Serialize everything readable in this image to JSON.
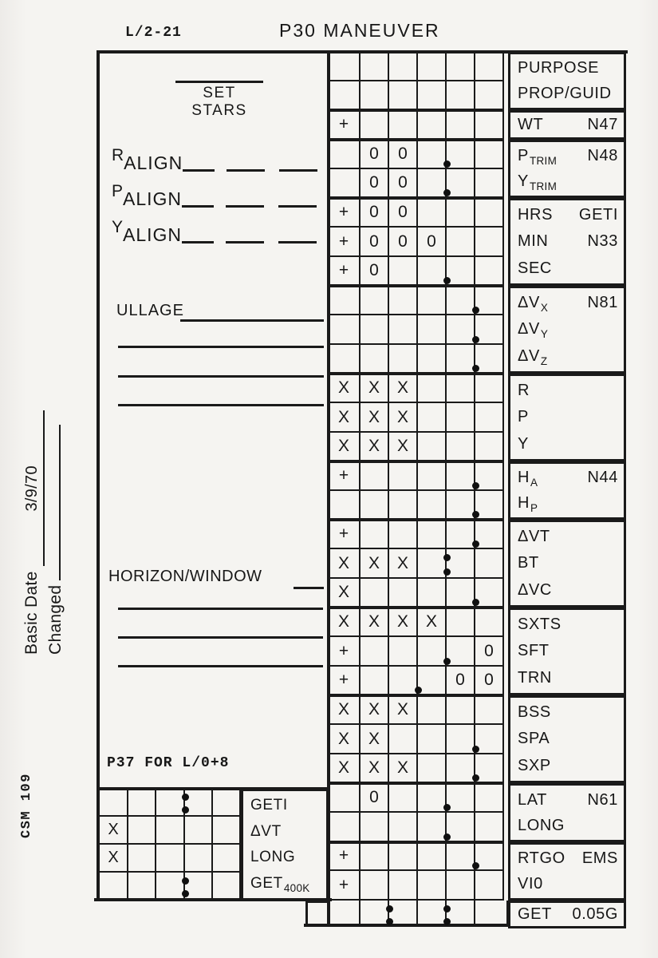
{
  "header": {
    "card_code": "L/2-21",
    "title": "P30 MANEUVER"
  },
  "margin": {
    "basic_date_label": "Basic Date",
    "basic_date_value": "3/9/70",
    "changed_label": "Changed",
    "csm": "CSM 109"
  },
  "left_annotations": {
    "set_stars": "SET STARS",
    "aligns": [
      {
        "main": "R",
        "sub": "ALIGN",
        "blanks": 3
      },
      {
        "main": "P",
        "sub": "ALIGN",
        "blanks": 3
      },
      {
        "main": "Y",
        "sub": "ALIGN",
        "blanks": 3
      }
    ],
    "ullage": "ULLAGE",
    "ullage_blank_lines": 3,
    "horizon": "HORIZON/WINDOW",
    "horizon_blank_lines": 3,
    "p37_note": "P37 FOR L/0+8"
  },
  "main_table": {
    "columns": 6,
    "sections": [
      {
        "label_lines": [
          [
            {
              "t": "PURPOSE"
            }
          ],
          [
            {
              "t": "PROP/GUID"
            }
          ]
        ],
        "rows": [
          {
            "cells": [
              "",
              "",
              "",
              "",
              "",
              ""
            ]
          },
          {
            "cells": [
              "",
              "",
              "",
              "",
              "",
              ""
            ]
          }
        ]
      },
      {
        "label_lines": [
          [
            {
              "t": "WT"
            },
            {
              "t": "N47",
              "style": "right"
            }
          ]
        ],
        "rows": [
          {
            "cells": [
              "+",
              "",
              "",
              "",
              "",
              ""
            ]
          }
        ]
      },
      {
        "label_lines": [
          [
            {
              "t": "P"
            },
            {
              "t": "TRIM",
              "style": "sub"
            },
            {
              "t": "N48",
              "style": "right"
            }
          ],
          [
            {
              "t": "Y"
            },
            {
              "t": "TRIM",
              "style": "sub"
            }
          ]
        ],
        "rows": [
          {
            "cells": [
              "",
              "0",
              "0",
              "",
              "",
              ""
            ],
            "dot": 4
          },
          {
            "cells": [
              "",
              "0",
              "0",
              "",
              "",
              ""
            ],
            "dot": 4
          }
        ]
      },
      {
        "label_lines": [
          [
            {
              "t": "HRS"
            },
            {
              "t": "GETI",
              "style": "right"
            }
          ],
          [
            {
              "t": "MIN"
            },
            {
              "t": "N33",
              "style": "right"
            }
          ],
          [
            {
              "t": "SEC"
            }
          ]
        ],
        "rows": [
          {
            "cells": [
              "+",
              "0",
              "0",
              "",
              "",
              ""
            ]
          },
          {
            "cells": [
              "+",
              "0",
              "0",
              "0",
              "",
              ""
            ]
          },
          {
            "cells": [
              "+",
              "0",
              "",
              "",
              "",
              ""
            ],
            "dot": 4
          }
        ]
      },
      {
        "label_lines": [
          [
            {
              "t": "ΔV"
            },
            {
              "t": "X",
              "style": "sub"
            },
            {
              "t": "N81",
              "style": "right"
            }
          ],
          [
            {
              "t": "ΔV"
            },
            {
              "t": "Y",
              "style": "sub"
            }
          ],
          [
            {
              "t": "ΔV"
            },
            {
              "t": "Z",
              "style": "sub"
            }
          ]
        ],
        "rows": [
          {
            "cells": [
              "",
              "",
              "",
              "",
              "",
              ""
            ],
            "dot": 5
          },
          {
            "cells": [
              "",
              "",
              "",
              "",
              "",
              ""
            ],
            "dot": 5
          },
          {
            "cells": [
              "",
              "",
              "",
              "",
              "",
              ""
            ],
            "dot": 5
          }
        ]
      },
      {
        "label_lines": [
          [
            {
              "t": "R"
            }
          ],
          [
            {
              "t": "P"
            }
          ],
          [
            {
              "t": "Y"
            }
          ]
        ],
        "rows": [
          {
            "cells": [
              "X",
              "X",
              "X",
              "",
              "",
              ""
            ]
          },
          {
            "cells": [
              "X",
              "X",
              "X",
              "",
              "",
              ""
            ]
          },
          {
            "cells": [
              "X",
              "X",
              "X",
              "",
              "",
              ""
            ]
          }
        ]
      },
      {
        "label_lines": [
          [
            {
              "t": "H"
            },
            {
              "t": "A",
              "style": "sub"
            },
            {
              "t": "N44",
              "style": "right"
            }
          ],
          [
            {
              "t": "H"
            },
            {
              "t": "P",
              "style": "sub"
            }
          ]
        ],
        "rows": [
          {
            "cells": [
              "+",
              "",
              "",
              "",
              "",
              ""
            ],
            "dot": 5
          },
          {
            "cells": [
              "",
              "",
              "",
              "",
              "",
              ""
            ],
            "dot": 5
          }
        ]
      },
      {
        "label_lines": [
          [
            {
              "t": "ΔVT"
            }
          ],
          [
            {
              "t": "BT"
            }
          ],
          [
            {
              "t": "ΔVC"
            }
          ]
        ],
        "rows": [
          {
            "cells": [
              "+",
              "",
              "",
              "",
              "",
              ""
            ],
            "dot": 5
          },
          {
            "cells": [
              "X",
              "X",
              "X",
              "",
              "",
              ""
            ],
            "colon": 4
          },
          {
            "cells": [
              "X",
              "",
              "",
              "",
              "",
              ""
            ],
            "dot": 5
          }
        ]
      },
      {
        "label_lines": [
          [
            {
              "t": "SXTS"
            }
          ],
          [
            {
              "t": "SFT"
            }
          ],
          [
            {
              "t": "TRN"
            }
          ]
        ],
        "rows": [
          {
            "cells": [
              "X",
              "X",
              "X",
              "X",
              "",
              ""
            ]
          },
          {
            "cells": [
              "+",
              "",
              "",
              "",
              "",
              "0"
            ],
            "dot": 4
          },
          {
            "cells": [
              "+",
              "",
              "",
              "",
              "0",
              "0"
            ],
            "dot": 3
          }
        ]
      },
      {
        "label_lines": [
          [
            {
              "t": "BSS"
            }
          ],
          [
            {
              "t": "SPA"
            }
          ],
          [
            {
              "t": "SXP"
            }
          ]
        ],
        "rows": [
          {
            "cells": [
              "X",
              "X",
              "X",
              "",
              "",
              ""
            ]
          },
          {
            "cells": [
              "X",
              "X",
              "",
              "",
              "",
              ""
            ],
            "dot": 5
          },
          {
            "cells": [
              "X",
              "X",
              "X",
              "",
              "",
              ""
            ],
            "dot": 5
          }
        ]
      },
      {
        "label_lines": [
          [
            {
              "t": "LAT"
            },
            {
              "t": "N61",
              "style": "right"
            }
          ],
          [
            {
              "t": "LONG"
            }
          ]
        ],
        "rows": [
          {
            "cells": [
              "",
              "0",
              "",
              "",
              "",
              ""
            ],
            "dot": 4
          },
          {
            "cells": [
              "",
              "",
              "",
              "",
              "",
              ""
            ],
            "dot": 4
          }
        ]
      },
      {
        "label_lines": [
          [
            {
              "t": "RTGO"
            },
            {
              "t": "EMS",
              "style": "right"
            }
          ],
          [
            {
              "t": "VI0"
            }
          ]
        ],
        "rows": [
          {
            "cells": [
              "+",
              "",
              "",
              "",
              "",
              ""
            ],
            "dot": 5
          },
          {
            "cells": [
              "+",
              "",
              "",
              "",
              "",
              ""
            ]
          }
        ]
      }
    ],
    "get_row": {
      "cells": [
        "",
        "",
        "",
        "",
        "",
        "",
        ""
      ],
      "colons": [
        3,
        5
      ],
      "label_lines": [
        [
          {
            "t": "GET"
          },
          {
            "t": "0.05G",
            "style": "right"
          }
        ]
      ]
    }
  },
  "p37_table": {
    "rows": [
      {
        "cells": [
          "",
          "",
          "",
          "",
          ""
        ],
        "colon": 3
      },
      {
        "cells": [
          "X",
          "",
          "",
          "",
          ""
        ]
      },
      {
        "cells": [
          "X",
          "",
          "",
          "",
          ""
        ]
      },
      {
        "cells": [
          "",
          "",
          "",
          "",
          ""
        ],
        "colon": 3
      }
    ],
    "label_lines": [
      [
        {
          "t": "GETI"
        }
      ],
      [
        {
          "t": "ΔVT"
        }
      ],
      [
        {
          "t": "LONG"
        }
      ],
      [
        {
          "t": "GET"
        },
        {
          "t": "400K",
          "style": "sub"
        }
      ]
    ]
  }
}
